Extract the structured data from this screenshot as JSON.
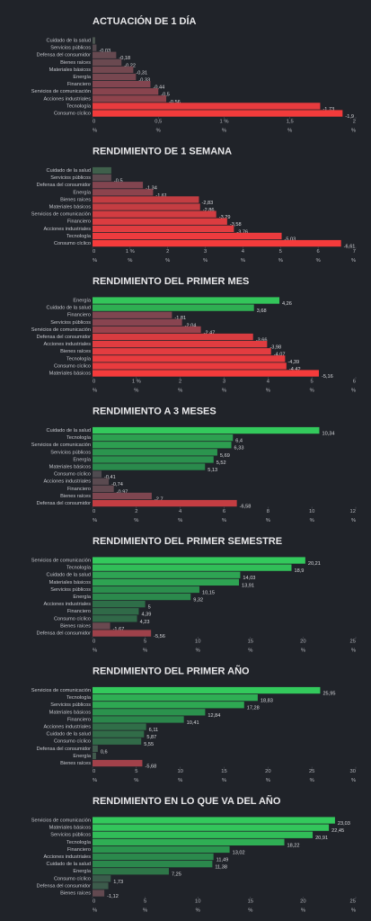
{
  "chart_data": [
    {
      "type": "bar",
      "orientation": "horizontal",
      "title": "ACTUACIÓN DE 1 DÍA",
      "categories": [
        "Cuidado de la salud",
        "Servicios públicos",
        "Defensa del consumidor",
        "Bienes raíces",
        "Materiales básicos",
        "Energía",
        "Financiero",
        "Servicios de comunicación",
        "Acciones industriales",
        "Tecnología",
        "Consumo cíclico"
      ],
      "values": [
        0.02,
        -0.03,
        -0.18,
        -0.22,
        -0.31,
        -0.33,
        -0.44,
        -0.5,
        -0.56,
        -1.73,
        -1.9
      ],
      "value_labels": [
        null,
        "-0,03",
        "-0,18",
        "-0,22",
        "-0,31",
        "-0,33",
        "-0,44",
        "-0,5",
        "-0,56",
        "-1,73",
        "-1,9"
      ],
      "colors": [
        "#4d5752",
        "#55484e",
        "#664950",
        "#6a4950",
        "#744850",
        "#774750",
        "#824550",
        "#88444e",
        "#8e434c",
        "#e83b3e",
        "#f23b3b"
      ],
      "xlim": [
        0,
        2
      ],
      "xticks": [
        0,
        {
          "value": 0.5,
          "label": "0,5"
        },
        {
          "value": 1,
          "label": "1 %"
        },
        {
          "value": 1.5,
          "label": "1,5"
        },
        2
      ],
      "unit_label": "%"
    },
    {
      "type": "bar",
      "orientation": "horizontal",
      "title": "RENDIMIENTO DE 1 SEMANA",
      "categories": [
        "Cuidado de la salud",
        "Servicios públicos",
        "Defensa del consumidor",
        "Energía",
        "Bienes raíces",
        "Materiales básicos",
        "Servicios de comunicación",
        "Financiero",
        "Acciones industriales",
        "Tecnología",
        "Consumo cíclico"
      ],
      "values": [
        0.5,
        -0.5,
        -1.34,
        -1.61,
        -2.83,
        -2.86,
        -3.29,
        -3.58,
        -3.76,
        -5.03,
        -6.61
      ],
      "value_labels": [
        null,
        "-0,5",
        "-1,34",
        "-1,61",
        "-2,83",
        "-2,86",
        "-3,29",
        "-3,58",
        "-3,76",
        "-5,03",
        "-6,61"
      ],
      "colors": [
        "#3f5f4b",
        "#5e4a50",
        "#824550",
        "#8c434d",
        "#c23d42",
        "#c43d42",
        "#d23c41",
        "#dc3c40",
        "#e03c40",
        "#ec3b3e",
        "#f53b3b"
      ],
      "xlim": [
        0,
        7
      ],
      "xticks": [
        0,
        {
          "value": 1,
          "label": "1 %"
        },
        2,
        3,
        4,
        5,
        6,
        7
      ],
      "unit_label": "%"
    },
    {
      "type": "bar",
      "orientation": "horizontal",
      "title": "RENDIMIENTO DEL PRIMER MES",
      "categories": [
        "Energía",
        "Cuidado de la salud",
        "Financiero",
        "Servicios públicos",
        "Servicios de comunicación",
        "Defensa del consumidor",
        "Acciones industriales",
        "Bienes raíces",
        "Tecnología",
        "Consumo cíclico",
        "Materiales básicos"
      ],
      "values": [
        4.26,
        3.68,
        -1.81,
        -2.04,
        -2.47,
        -3.66,
        -3.98,
        -4.07,
        -4.39,
        -4.42,
        -5.16
      ],
      "value_labels": [
        "4,26",
        "3,68",
        "-1,81",
        "-2,04",
        "-2,47",
        "-3,66",
        "-3,98",
        "-4,07",
        "-4,39",
        "-4,42",
        "-5,16"
      ],
      "colors": [
        "#33c55a",
        "#2fae52",
        "#7e4650",
        "#884450",
        "#9a424c",
        "#d83c40",
        "#e03c40",
        "#e23c40",
        "#e83b3e",
        "#e93b3e",
        "#f53b3b"
      ],
      "xlim": [
        0,
        6
      ],
      "xticks": [
        0,
        {
          "value": 1,
          "label": "1 %"
        },
        2,
        3,
        4,
        5,
        6
      ],
      "unit_label": "%"
    },
    {
      "type": "bar",
      "orientation": "horizontal",
      "title": "RENDIMIENTO A 3 MESES",
      "categories": [
        "Cuidado de la salud",
        "Tecnología",
        "Servicios de comunicación",
        "Servicios públicos",
        "Energía",
        "Materiales básicos",
        "Consumo cíclico",
        "Acciones industriales",
        "Financiero",
        "Bienes raíces",
        "Defensa del consumidor"
      ],
      "values": [
        10.34,
        6.4,
        6.33,
        5.69,
        5.52,
        5.13,
        -0.41,
        -0.74,
        -0.97,
        -2.7,
        -6.58
      ],
      "value_labels": [
        "10,34",
        "6,4",
        "6,33",
        "5,69",
        "5,52",
        "5,13",
        "-0,41",
        "-0,74",
        "-0,97",
        "-2,7",
        "-6,58"
      ],
      "colors": [
        "#33c95c",
        "#2da050",
        "#2d9e50",
        "#2b944e",
        "#2b914e",
        "#2a8a4c",
        "#4f4b50",
        "#5a4a50",
        "#624950",
        "#7e4650",
        "#c43d42"
      ],
      "xlim": [
        0,
        12
      ],
      "xticks": [
        0,
        2,
        4,
        6,
        8,
        10,
        12
      ],
      "unit_label": "%"
    },
    {
      "type": "bar",
      "orientation": "horizontal",
      "title": "RENDIMIENTO DEL PRIMER SEMESTRE",
      "categories": [
        "Servicios de comunicación",
        "Tecnología",
        "Cuidado de la salud",
        "Materiales básicos",
        "Servicios públicos",
        "Energía",
        "Acciones industriales",
        "Financiero",
        "Consumo cíclico",
        "Bienes raíces",
        "Defensa del consumidor"
      ],
      "values": [
        20.21,
        18.9,
        14.03,
        13.91,
        10.15,
        9.32,
        5,
        4.39,
        4.23,
        -1.67,
        -5.56
      ],
      "value_labels": [
        "20,21",
        "18,9",
        "14,03",
        "13,91",
        "10,15",
        "9,32",
        "5",
        "4,39",
        "4,23",
        "-1,67",
        "-5,56"
      ],
      "colors": [
        "#33c95c",
        "#31be58",
        "#2ea453",
        "#2ea352",
        "#2b8e4d",
        "#2b894c",
        "#2e6e48",
        "#306a48",
        "#316848",
        "#6a4950",
        "#9e414a"
      ],
      "xlim": [
        0,
        25
      ],
      "xticks": [
        0,
        5,
        10,
        15,
        20,
        25
      ],
      "unit_label": "%"
    },
    {
      "type": "bar",
      "orientation": "horizontal",
      "title": "RENDIMIENTO DEL PRIMER AÑO",
      "categories": [
        "Servicios de comunicación",
        "Tecnología",
        "Servicios públicos",
        "Materiales básicos",
        "Financiero",
        "Acciones industriales",
        "Cuidado de la salud",
        "Consumo cíclico",
        "Defensa del consumidor",
        "Energía",
        "Bienes raíces"
      ],
      "values": [
        25.95,
        18.83,
        17.28,
        12.84,
        10.41,
        6.11,
        5.87,
        5.55,
        0.6,
        0.4,
        -5.68
      ],
      "value_labels": [
        "25,95",
        "18,83",
        "17,28",
        "12,84",
        "10,41",
        "6,11",
        "5,87",
        "5,55",
        "0,6",
        null,
        "-5,68"
      ],
      "colors": [
        "#33c95c",
        "#2fae54",
        "#2ea852",
        "#2b924d",
        "#2b864b",
        "#306e48",
        "#316c48",
        "#316a48",
        "#3f5a4c",
        "#405a4c",
        "#a2414a"
      ],
      "xlim": [
        0,
        30
      ],
      "xticks": [
        0,
        5,
        10,
        15,
        20,
        25,
        30
      ],
      "unit_label": "%"
    },
    {
      "type": "bar",
      "orientation": "horizontal",
      "title": "RENDIMIENTO EN LO QUE VA DEL AÑO",
      "categories": [
        "Servicios de comunicación",
        "Materiales básicos",
        "Servicios públicos",
        "Tecnología",
        "Financiero",
        "Acciones industriales",
        "Cuidado de la salud",
        "Energía",
        "Consumo cíclico",
        "Defensa del consumidor",
        "Bienes raíces"
      ],
      "values": [
        23.03,
        22.45,
        20.91,
        18.22,
        13.02,
        11.49,
        11.38,
        7.25,
        1.73,
        1.5,
        -1.12
      ],
      "value_labels": [
        "23,03",
        "22,45",
        "20,91",
        "18,22",
        "13,02",
        "11,49",
        "11,38",
        "7,25",
        "1,73",
        null,
        "-1,12"
      ],
      "colors": [
        "#33c95c",
        "#33c55b",
        "#31bd58",
        "#2fae54",
        "#2b944e",
        "#2b894c",
        "#2b884c",
        "#2e7648",
        "#3a5c4b",
        "#3c5b4b",
        "#624950"
      ],
      "xlim": [
        0,
        25
      ],
      "xticks": [
        0,
        5,
        10,
        15,
        20,
        25
      ],
      "unit_label": "%"
    }
  ]
}
